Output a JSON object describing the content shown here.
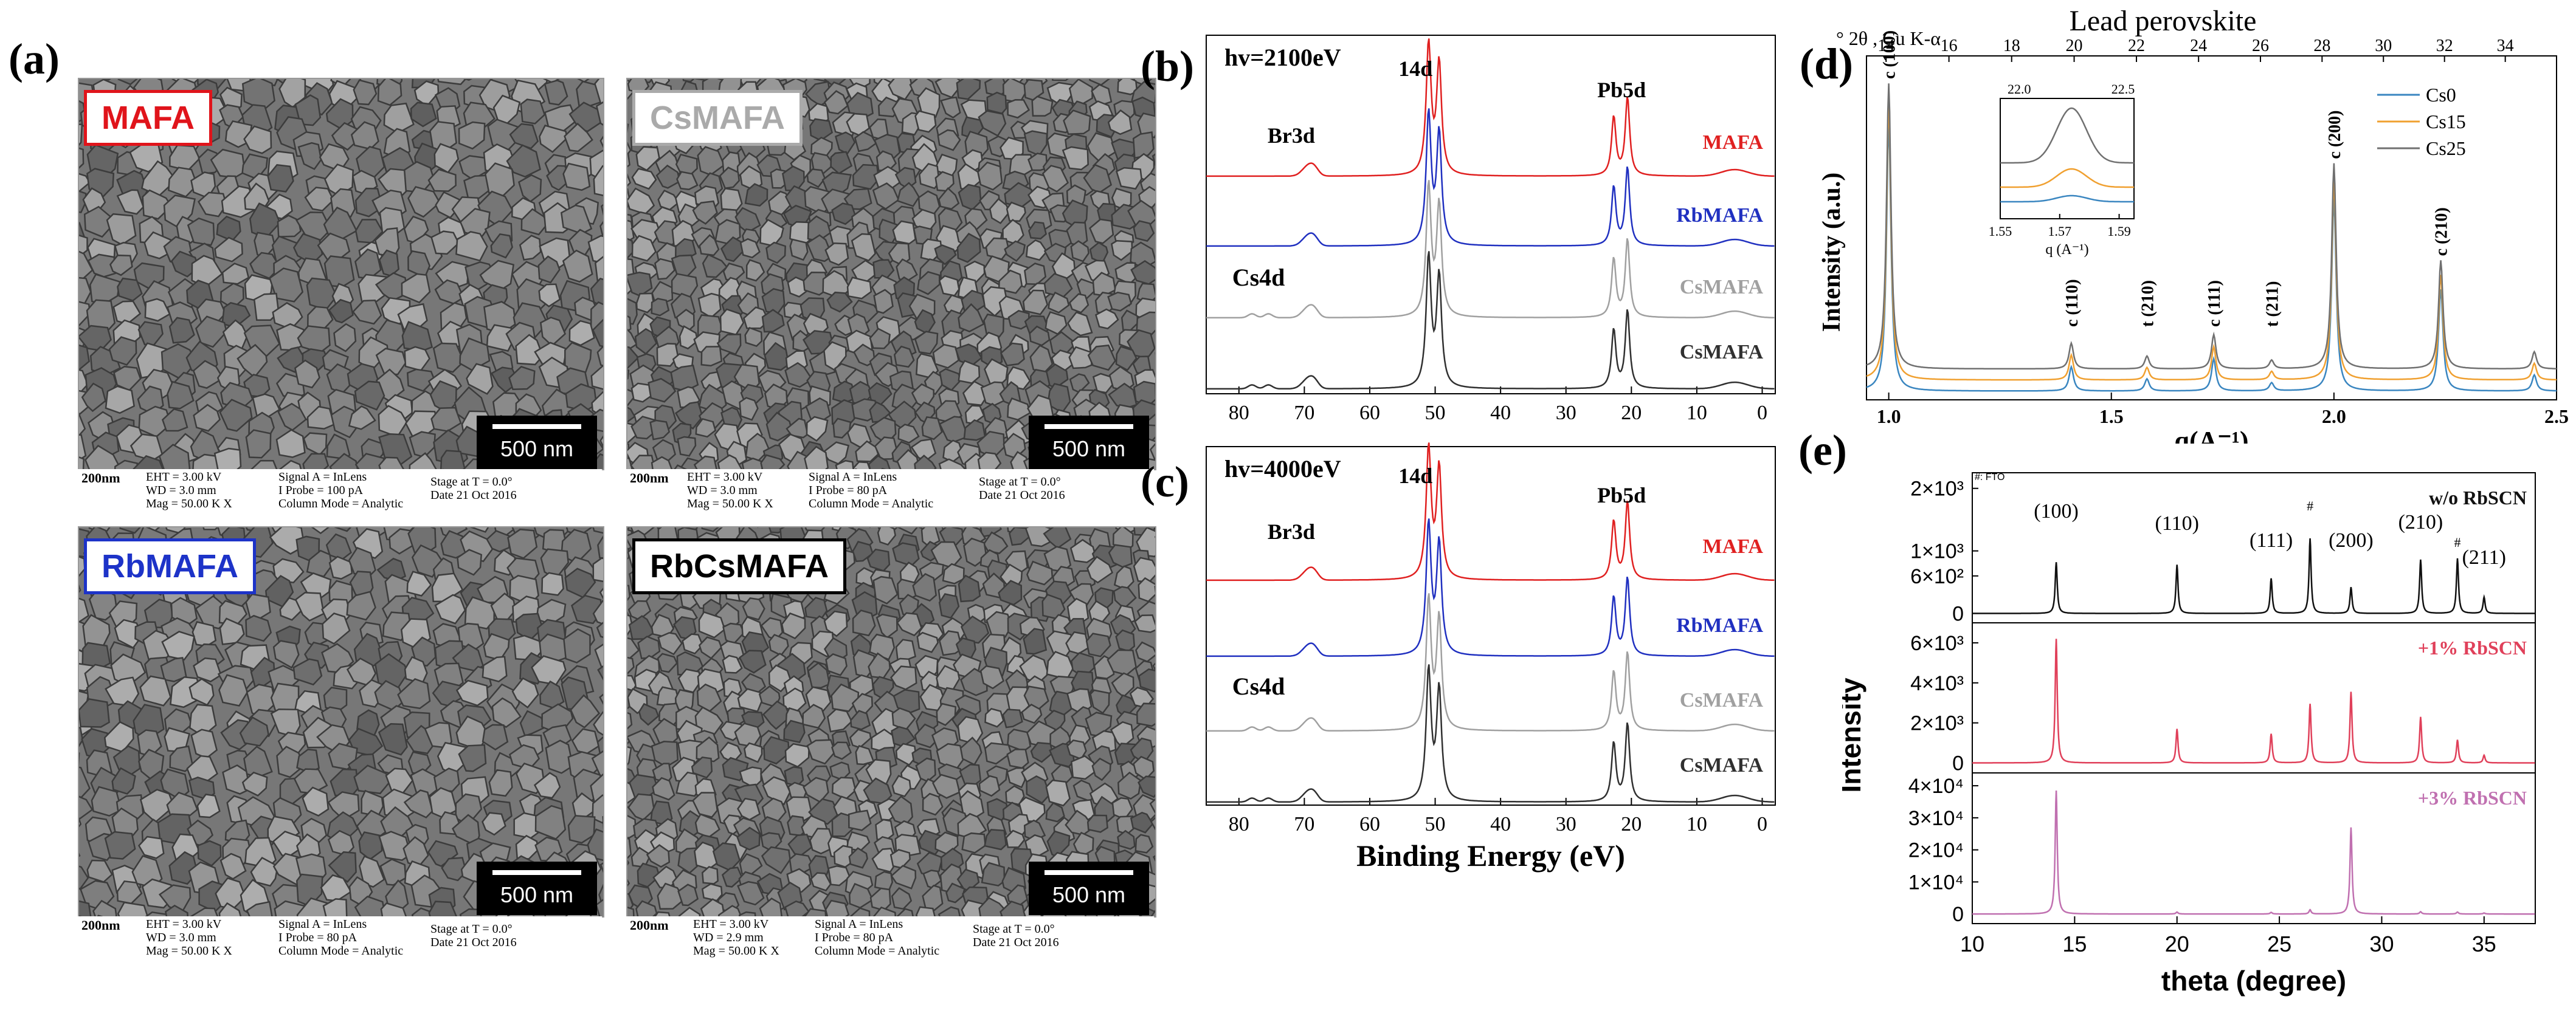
{
  "panel_labels": {
    "a": "(a)",
    "b": "(b)",
    "c": "(c)",
    "d": "(d)",
    "e": "(e)"
  },
  "sem_images": [
    {
      "tag": "MAFA",
      "tag_color": "#e0141b",
      "scale": "500 nm",
      "scale_bar": "200nm",
      "col1": [
        "EHT = 3.00 kV",
        "WD = 3.0 mm",
        "Mag = 50.00 K X"
      ],
      "col2": [
        "Signal A = InLens",
        "I Probe = 100 pA",
        "Column Mode = Analytic"
      ],
      "col3": [
        "Stage at T = 0.0°",
        "Date 21 Oct 2016",
        ""
      ]
    },
    {
      "tag": "CsMAFA",
      "tag_color": "#aaaaaa",
      "scale": "500 nm",
      "scale_bar": "200nm",
      "col1": [
        "EHT = 3.00 kV",
        "WD = 3.0 mm",
        "Mag = 50.00 K X"
      ],
      "col2": [
        "Signal A = InLens",
        "I Probe = 80 pA",
        "Column Mode = Analytic"
      ],
      "col3": [
        "Stage at T = 0.0°",
        "Date 21 Oct 2016",
        ""
      ]
    },
    {
      "tag": "RbMAFA",
      "tag_color": "#1d33c8",
      "scale": "500 nm",
      "scale_bar": "200nm",
      "col1": [
        "EHT = 3.00 kV",
        "WD = 3.0 mm",
        "Mag = 50.00 K X"
      ],
      "col2": [
        "Signal A = InLens",
        "I Probe = 80 pA",
        "Column Mode = Analytic"
      ],
      "col3": [
        "Stage at T = 0.0°",
        "Date 21 Oct 2016",
        ""
      ]
    },
    {
      "tag": "RbCsMAFA",
      "tag_color": "#000000",
      "scale": "500 nm",
      "scale_bar": "200nm",
      "col1": [
        "EHT = 3.00 kV",
        "WD = 2.9 mm",
        "Mag = 50.00 K X"
      ],
      "col2": [
        "Signal A = InLens",
        "I Probe = 80 pA",
        "Column Mode = Analytic"
      ],
      "col3": [
        "Stage at T = 0.0°",
        "Date 21 Oct 2016",
        ""
      ]
    }
  ],
  "chart_data": [
    {
      "id": "b",
      "type": "line",
      "annotation": "hv=2100eV",
      "xlabel": "",
      "xlim": [
        85,
        -2
      ],
      "x_reversed": true,
      "xticks": [
        80,
        70,
        60,
        50,
        40,
        30,
        20,
        10,
        0
      ],
      "peak_labels": [
        "Br3d",
        "14d",
        "Pb5d",
        "Cs4d"
      ],
      "series": [
        {
          "name": "MAFA",
          "color": "#e02020"
        },
        {
          "name": "RbMAFA",
          "color": "#2030c0"
        },
        {
          "name": "CsMAFA",
          "color": "#a0a0a0"
        },
        {
          "name": "CsMAFA",
          "color": "#303030"
        }
      ]
    },
    {
      "id": "c",
      "type": "line",
      "annotation": "hv=4000eV",
      "xlabel": "Binding Energy (eV)",
      "xlim": [
        85,
        -2
      ],
      "x_reversed": true,
      "xticks": [
        80,
        70,
        60,
        50,
        40,
        30,
        20,
        10,
        0
      ],
      "peak_labels": [
        "Br3d",
        "14d",
        "Pb5d",
        "Cs4d"
      ],
      "series": [
        {
          "name": "MAFA",
          "color": "#e02020"
        },
        {
          "name": "RbMAFA",
          "color": "#2030c0"
        },
        {
          "name": "CsMAFA",
          "color": "#a0a0a0"
        },
        {
          "name": "CsMAFA",
          "color": "#303030"
        }
      ]
    },
    {
      "id": "d",
      "type": "line",
      "title": "Lead perovskite",
      "top_axis_label": "° 2θ , Cu K-α",
      "top_ticks": [
        14,
        16,
        18,
        20,
        22,
        24,
        26,
        28,
        30,
        32,
        34
      ],
      "xlabel": "q(A⁻¹)",
      "ylabel": "Intensity (a.u.)",
      "xlim": [
        0.95,
        2.5
      ],
      "xticks": [
        1.0,
        1.5,
        2.0,
        2.5
      ],
      "peaks": [
        {
          "label": "c (100)",
          "q": 1.0
        },
        {
          "label": "c (110)",
          "q": 1.41
        },
        {
          "label": "t (210)",
          "q": 1.58
        },
        {
          "label": "c (111)",
          "q": 1.73
        },
        {
          "label": "t (211)",
          "q": 1.86
        },
        {
          "label": "c (200)",
          "q": 2.0
        },
        {
          "label": "c (210)",
          "q": 2.24
        }
      ],
      "series": [
        {
          "name": "Cs0",
          "color": "#3a86c0"
        },
        {
          "name": "Cs15",
          "color": "#f0a030"
        },
        {
          "name": "Cs25",
          "color": "#707070"
        }
      ],
      "inset": {
        "top_ticks": [
          "22.0",
          "22.5"
        ],
        "xticks": [
          "1.55",
          "1.57",
          "1.59"
        ],
        "xlabel": "q (A⁻¹)"
      }
    },
    {
      "id": "e",
      "type": "line",
      "xlabel": "theta (degree)",
      "ylabel": "Intensity",
      "xlim": [
        10,
        37.5
      ],
      "xticks": [
        10,
        15,
        20,
        25,
        30,
        35
      ],
      "fto_label": "#: FTO",
      "peaks": [
        {
          "label": "(100)",
          "x": 14.1
        },
        {
          "label": "(110)",
          "x": 20.0
        },
        {
          "label": "(111)",
          "x": 24.6
        },
        {
          "label": "(200)",
          "x": 28.5
        },
        {
          "label": "(210)",
          "x": 31.9
        },
        {
          "label": "(211)",
          "x": 35.0
        }
      ],
      "fto_marks": [
        {
          "label": "#",
          "x": 26.5
        },
        {
          "label": "#",
          "x": 33.7
        }
      ],
      "subplots": [
        {
          "name": "w/o RbSCN",
          "color": "#111111",
          "yticks": [
            "2×10³",
            "1×10³",
            "6×10²",
            "0"
          ],
          "ytick_vals": [
            2000,
            1000,
            600,
            0
          ],
          "ylim": [
            -150,
            2250
          ],
          "peak_heights": [
            [
              14.1,
              820
            ],
            [
              20.0,
              780
            ],
            [
              24.6,
              560
            ],
            [
              26.5,
              1200
            ],
            [
              28.5,
              420
            ],
            [
              31.9,
              860
            ],
            [
              33.7,
              880
            ],
            [
              35.0,
              260
            ]
          ]
        },
        {
          "name": "+1% RbSCN",
          "color": "#e0405a",
          "yticks": [
            "6×10³",
            "4×10³",
            "2×10³",
            "0"
          ],
          "ytick_vals": [
            6000,
            4000,
            2000,
            0
          ],
          "ylim": [
            -500,
            7000
          ],
          "peak_heights": [
            [
              14.1,
              6200
            ],
            [
              20.0,
              1700
            ],
            [
              24.6,
              1450
            ],
            [
              26.5,
              2950
            ],
            [
              28.5,
              3550
            ],
            [
              31.9,
              2300
            ],
            [
              33.7,
              1150
            ],
            [
              35.0,
              380
            ]
          ]
        },
        {
          "name": "+3% RbSCN",
          "color": "#c070b0",
          "yticks": [
            "4×10⁴",
            "3×10⁴",
            "2×10⁴",
            "1×10⁴",
            "0"
          ],
          "ytick_vals": [
            40000,
            30000,
            20000,
            10000,
            0
          ],
          "ylim": [
            -3000,
            44000
          ],
          "peak_heights": [
            [
              14.1,
              38500
            ],
            [
              20.0,
              600
            ],
            [
              24.6,
              500
            ],
            [
              26.5,
              1300
            ],
            [
              28.5,
              27000
            ],
            [
              31.9,
              700
            ],
            [
              33.7,
              600
            ],
            [
              35.0,
              300
            ]
          ]
        }
      ]
    }
  ]
}
